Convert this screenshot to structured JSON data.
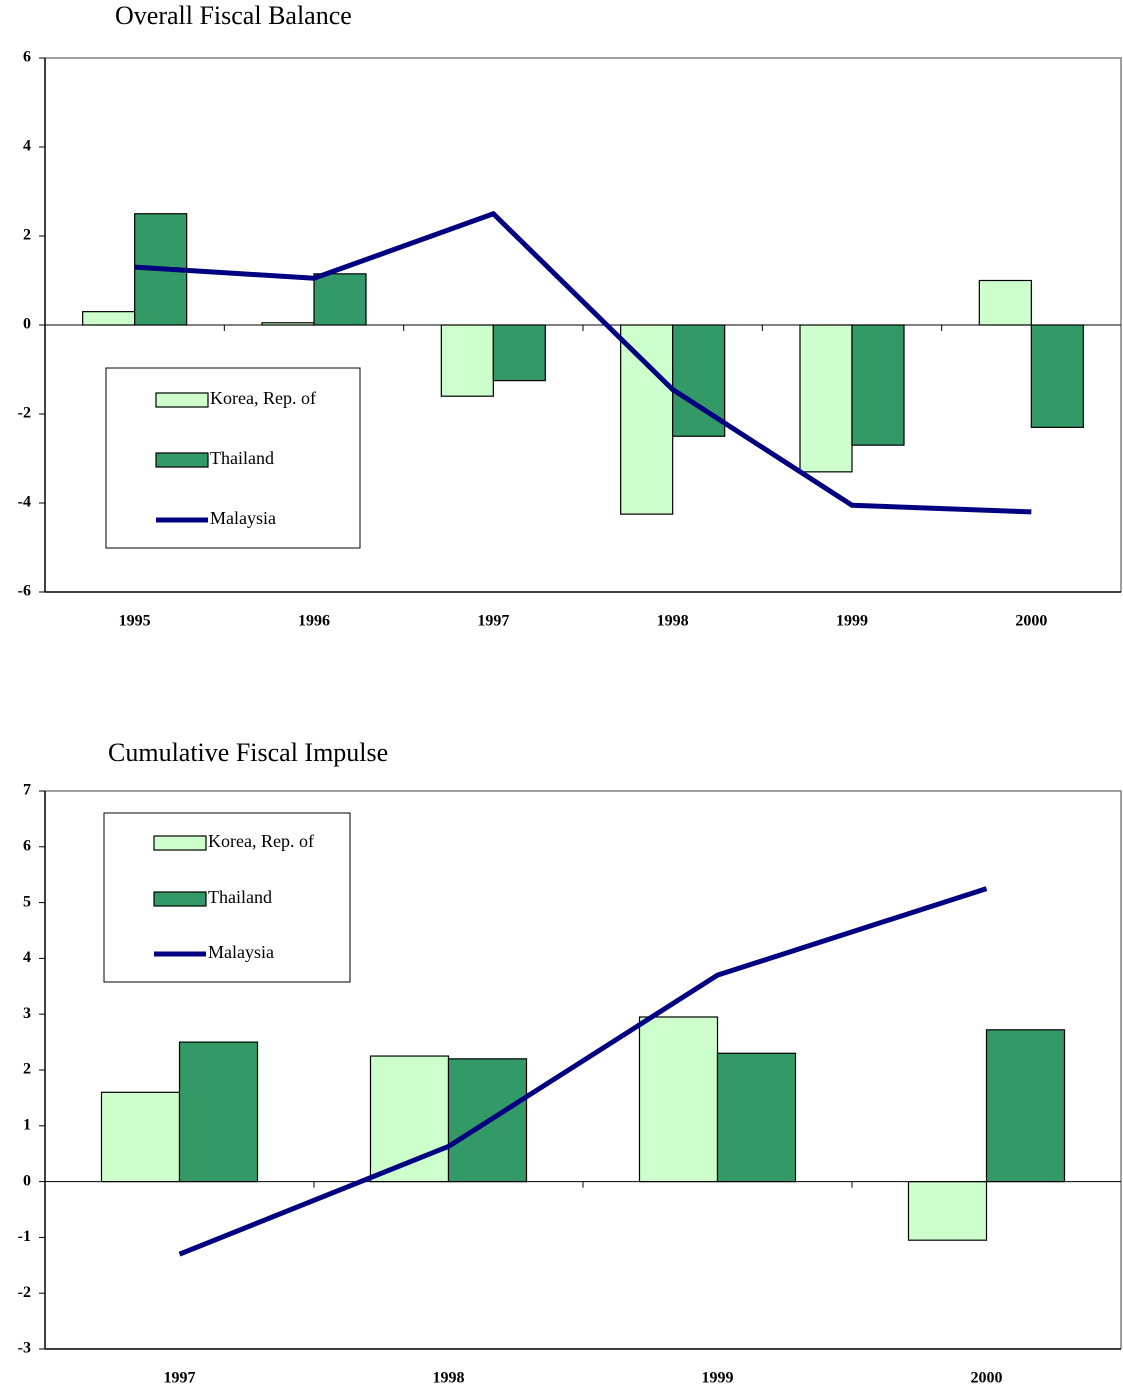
{
  "chart_data": [
    {
      "type": "bar",
      "title": "Overall Fiscal Balance",
      "categories": [
        "1995",
        "1996",
        "1997",
        "1998",
        "1999",
        "2000"
      ],
      "series": [
        {
          "name": "Korea, Rep. of",
          "color": "#ccffcc",
          "values": [
            0.3,
            0.05,
            -1.6,
            -4.25,
            -3.3,
            1.0
          ]
        },
        {
          "name": "Thailand",
          "color": "#339966",
          "values": [
            2.5,
            1.15,
            -1.25,
            -2.5,
            -2.7,
            -2.3
          ]
        },
        {
          "name": "Malaysia",
          "color": "#000080",
          "type": "line",
          "values": [
            1.3,
            1.05,
            2.5,
            -1.45,
            -4.05,
            -4.2
          ]
        }
      ],
      "ylim": [
        -6,
        6
      ],
      "yticks": [
        -6,
        -4,
        -2,
        0,
        2,
        4,
        6
      ]
    },
    {
      "type": "bar",
      "title": "Cumulative Fiscal Impulse",
      "categories": [
        "1997",
        "1998",
        "1999",
        "2000"
      ],
      "series": [
        {
          "name": "Korea, Rep. of",
          "color": "#ccffcc",
          "values": [
            1.6,
            2.25,
            2.95,
            -1.05
          ]
        },
        {
          "name": "Thailand",
          "color": "#339966",
          "values": [
            2.5,
            2.2,
            2.3,
            2.72
          ]
        },
        {
          "name": "Malaysia",
          "color": "#000080",
          "type": "line",
          "values": [
            -1.3,
            0.63,
            3.7,
            5.25
          ]
        }
      ],
      "ylim": [
        -3,
        7
      ],
      "yticks": [
        -3,
        -2,
        -1,
        0,
        1,
        2,
        3,
        4,
        5,
        6,
        7
      ]
    }
  ]
}
